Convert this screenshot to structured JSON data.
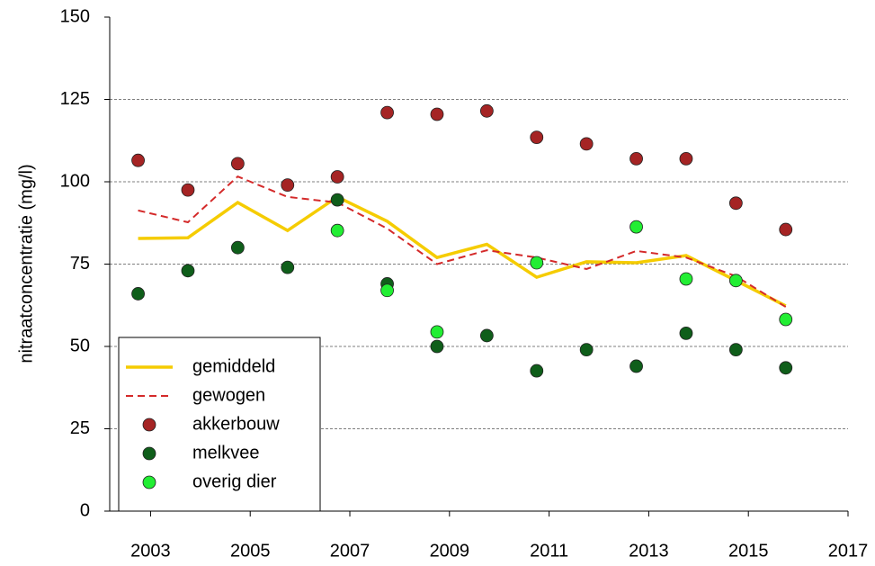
{
  "chart_data": {
    "type": "line",
    "y_label": "nitraatconcentratie (mg/l)",
    "x": [
      2002.75,
      2003.75,
      2004.75,
      2005.75,
      2006.75,
      2007.75,
      2008.75,
      2009.75,
      2010.75,
      2011.75,
      2012.75,
      2013.75,
      2014.75,
      2015.75
    ],
    "xlim": [
      2002.18,
      2017
    ],
    "xticks": [
      2003,
      2005,
      2007,
      2009,
      2011,
      2013,
      2015,
      2017
    ],
    "ylim": [
      0,
      150
    ],
    "yticks": [
      0,
      25,
      50,
      75,
      100,
      125,
      150
    ],
    "grid": true,
    "legend": "lower left",
    "series": [
      {
        "name": "gemiddeld",
        "color": "#f5cc00",
        "mode": "line",
        "dash": false,
        "values": [
          82.8,
          83,
          93.7,
          85.2,
          95.4,
          88,
          77,
          81,
          71,
          75.7,
          75.4,
          77.6,
          70,
          62.3
        ]
      },
      {
        "name": "gewogen",
        "color": "#d42a2a",
        "mode": "line",
        "dash": true,
        "values": [
          91.3,
          87.7,
          101.6,
          95.4,
          93.7,
          85.8,
          75,
          79.2,
          77,
          73.5,
          79,
          77,
          71.3,
          62
        ]
      },
      {
        "name": "akkerbouw",
        "color": "#a52424",
        "mode": "scatter",
        "values": [
          106.5,
          97.5,
          105.5,
          99,
          101.5,
          121,
          120.5,
          121.5,
          113.5,
          111.5,
          107,
          107,
          93.5,
          85.5
        ]
      },
      {
        "name": "melkvee",
        "color": "#0f5e1a",
        "mode": "scatter",
        "values": [
          66,
          73,
          80,
          74,
          94.5,
          69,
          50,
          53.3,
          42.6,
          49,
          44,
          54,
          49,
          43.5
        ]
      },
      {
        "name": "overig dier",
        "color": "#22ee33",
        "mode": "scatter",
        "values": [
          null,
          null,
          null,
          null,
          85.2,
          67,
          54.4,
          null,
          75.4,
          null,
          86.3,
          70.5,
          70,
          58.2
        ]
      }
    ]
  }
}
